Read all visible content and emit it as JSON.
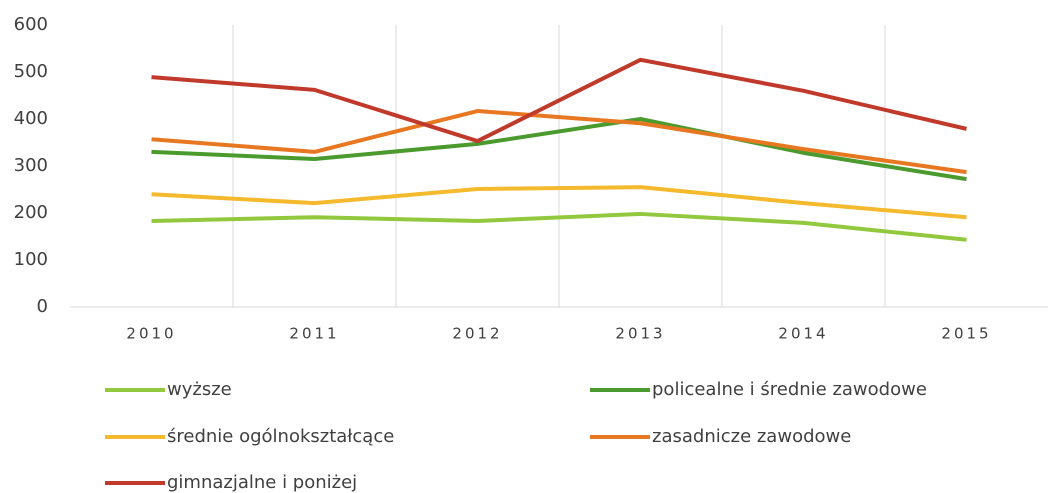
{
  "chart_data": {
    "type": "line",
    "categories": [
      "2010",
      "2011",
      "2012",
      "2013",
      "2014",
      "2015"
    ],
    "series": [
      {
        "name": "wyższe",
        "color": "#92c83e",
        "values": [
          183,
          191,
          183,
          198,
          179,
          143
        ]
      },
      {
        "name": "policealne i średnie zawodowe",
        "color": "#4a9a2e",
        "values": [
          330,
          315,
          347,
          400,
          328,
          272
        ]
      },
      {
        "name": "średnie ogólnokształcące",
        "color": "#f4b92c",
        "values": [
          240,
          221,
          251,
          255,
          221,
          191
        ]
      },
      {
        "name": "zasadnicze zawodowe",
        "color": "#e87722",
        "values": [
          357,
          330,
          417,
          391,
          336,
          287
        ]
      },
      {
        "name": "gimnazjalne i poniżej",
        "color": "#c0392b",
        "values": [
          489,
          462,
          353,
          526,
          460,
          379
        ]
      }
    ],
    "ylim": [
      0,
      600
    ],
    "yticks": [
      0,
      100,
      200,
      300,
      400,
      500,
      600
    ],
    "grid": "vertical",
    "legend": "bottom"
  }
}
